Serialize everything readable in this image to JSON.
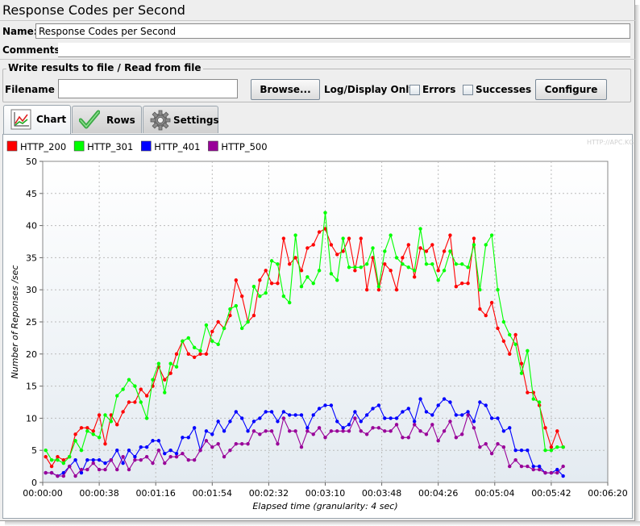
{
  "window": {
    "title": "Response Codes per Second"
  },
  "fields": {
    "name_label": "Name:",
    "name_value": "Response Codes per Second",
    "comments_label": "Comments:"
  },
  "file_section": {
    "title": "Write results to file / Read from file",
    "filename_label": "Filename",
    "browse_label": "Browse...",
    "log_display_label": "Log/Display Only:",
    "errors_label": "Errors",
    "successes_label": "Successes",
    "configure_label": "Configure"
  },
  "tabs": [
    {
      "label": "Chart",
      "icon": "chart-icon",
      "selected": true
    },
    {
      "label": "Rows",
      "icon": "checkmark-icon",
      "selected": false
    },
    {
      "label": "Settings",
      "icon": "gear-icon",
      "selected": false
    }
  ],
  "watermark": "HTTP://APC.KG",
  "chart_data": {
    "type": "line",
    "title": "",
    "xlabel": "Elapsed time (granularity: 4 sec)",
    "ylabel": "Number of Reponses /sec",
    "ylim": [
      0,
      50
    ],
    "yticks": [
      0,
      5,
      10,
      15,
      20,
      25,
      30,
      35,
      40,
      45,
      50
    ],
    "xlim_sec": [
      0,
      380
    ],
    "xticks": [
      "00:00:00",
      "00:00:38",
      "00:01:16",
      "00:01:54",
      "00:02:32",
      "00:03:10",
      "00:03:48",
      "00:04:26",
      "00:05:04",
      "00:05:42",
      "00:06:20"
    ],
    "grid": true,
    "legend_position": "top-left",
    "granularity_sec": 4,
    "series": [
      {
        "name": "HTTP_200",
        "color": "#ff0000",
        "values": [
          4,
          2.5,
          4,
          3.5,
          4,
          7.5,
          8.5,
          8.5,
          8,
          10.5,
          6,
          10.5,
          9,
          11,
          12.5,
          12.5,
          14.5,
          13.5,
          15,
          18,
          16,
          17,
          20,
          22,
          20,
          19.5,
          20,
          20,
          23.5,
          25,
          24,
          26,
          31.5,
          29,
          25,
          26,
          31.5,
          33,
          31,
          31,
          38,
          34,
          35,
          33,
          36.5,
          37,
          39,
          39.5,
          37,
          35.5,
          36,
          38,
          33,
          38,
          30,
          35,
          30,
          34,
          33,
          30,
          35,
          37,
          32,
          36.5,
          36,
          37,
          33,
          36,
          38.5,
          30.5,
          31,
          31,
          38,
          27,
          26,
          28,
          24,
          22,
          20,
          23,
          18.5,
          14,
          14,
          12,
          8.5,
          5.5,
          8,
          5.5
        ]
      },
      {
        "name": "HTTP_301",
        "color": "#00ff00",
        "values": [
          5,
          3.5,
          3.5,
          3,
          4,
          6.5,
          5,
          8,
          7.5,
          7,
          10.5,
          9.5,
          13.5,
          14.5,
          16,
          15,
          12.5,
          10,
          16,
          18.5,
          14,
          18.5,
          18,
          22,
          22.5,
          21,
          20.5,
          24.5,
          22,
          21.5,
          24,
          27,
          27.5,
          24,
          25,
          30.5,
          29,
          29.5,
          34.5,
          34,
          29,
          28,
          38.5,
          30.5,
          32,
          31,
          33,
          42,
          32.5,
          31.5,
          38,
          33.5,
          33.5,
          33.5,
          34,
          36.5,
          30.5,
          36,
          38.5,
          35,
          34,
          33.5,
          33,
          39.5,
          34,
          34,
          31.5,
          33,
          36,
          34,
          34,
          33.5,
          37,
          30,
          37,
          38.5,
          30,
          25,
          23,
          21.5,
          17,
          20.5,
          13,
          12.5,
          5,
          5,
          5.5,
          5.5
        ]
      },
      {
        "name": "HTTP_401",
        "color": "#0000ff",
        "values": [
          1.5,
          1.5,
          1,
          1.5,
          2.5,
          3.5,
          1.5,
          3.5,
          3.5,
          3.5,
          3,
          3.5,
          5,
          3,
          5,
          4,
          5.5,
          5.5,
          6.5,
          6.5,
          4.5,
          5,
          4.5,
          7,
          7,
          8.5,
          5,
          8,
          7.5,
          9.5,
          8,
          9.5,
          11,
          10,
          8,
          9.5,
          10,
          11,
          11,
          9.5,
          11,
          10.5,
          10.5,
          10.5,
          8.5,
          10.5,
          11.5,
          12,
          12,
          9.5,
          8.5,
          9,
          11,
          9.5,
          10.5,
          11.5,
          12,
          10,
          10,
          10,
          11,
          11.5,
          9.5,
          13,
          11,
          10.5,
          12,
          13,
          12.5,
          10.5,
          10.5,
          11,
          9.5,
          12.5,
          12,
          10,
          10,
          8,
          8.5,
          5,
          5,
          5,
          2.5,
          2.5,
          1.5,
          1.5,
          2,
          1
        ]
      },
      {
        "name": "HTTP_500",
        "color": "#990099",
        "values": [
          1.5,
          1.5,
          1,
          1,
          2.5,
          1,
          2,
          2,
          3,
          2,
          2,
          3.5,
          2,
          4,
          2,
          3.5,
          3.5,
          4,
          3,
          5,
          3,
          4,
          4,
          4.5,
          3.5,
          3.5,
          5,
          6.5,
          5.5,
          6,
          4,
          5,
          6,
          6,
          6,
          8,
          7.5,
          8,
          8,
          6,
          10,
          8,
          8,
          5.5,
          8,
          7.5,
          8.5,
          7,
          8,
          8,
          8,
          8,
          10,
          8,
          7.5,
          8.5,
          8.5,
          8,
          8,
          9,
          7,
          7,
          9,
          8,
          7.5,
          9,
          6.5,
          8,
          9.5,
          7,
          7.5,
          10.5,
          8.5,
          5.5,
          6,
          4.5,
          6,
          5.5,
          2.5,
          3.5,
          2.5,
          2.5,
          2,
          2,
          1.5,
          1.5,
          1.5,
          2.5
        ]
      }
    ]
  }
}
